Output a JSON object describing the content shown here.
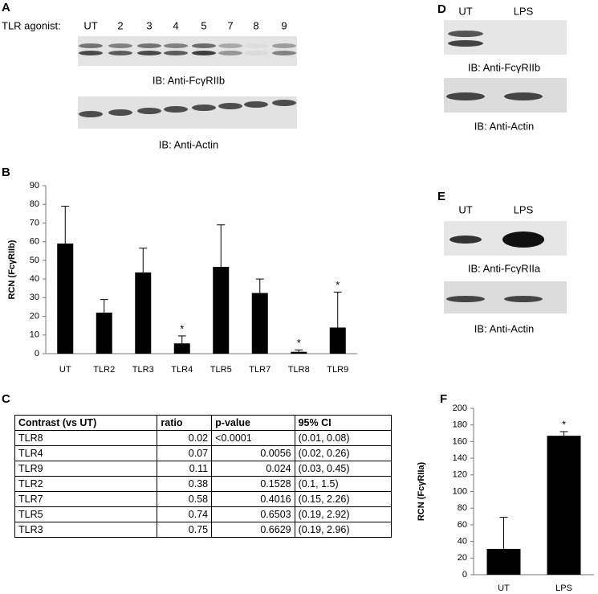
{
  "panels": {
    "a": "A",
    "b": "B",
    "c": "C",
    "d": "D",
    "e": "E",
    "f": "F"
  },
  "blot_a": {
    "row_label": "TLR agonist:",
    "lanes": [
      "UT",
      "2",
      "3",
      "4",
      "5",
      "7",
      "8",
      "9"
    ],
    "label_top": "IB: Anti-FcγRIIb",
    "label_bottom": "IB: Anti-Actin"
  },
  "blot_d": {
    "lanes": [
      "UT",
      "LPS"
    ],
    "label_top": "IB: Anti-FcγRIIb",
    "label_bottom": "IB: Anti-Actin"
  },
  "blot_e": {
    "lanes": [
      "UT",
      "LPS"
    ],
    "label_top": "IB: Anti-FcγRIIa",
    "label_bottom": "IB: Anti-Actin"
  },
  "chart_data": [
    {
      "type": "bar",
      "ylabel": "RCN (FcγRIIb)",
      "categories": [
        "UT",
        "TLR2",
        "TLR3",
        "TLR4",
        "TLR5",
        "TLR7",
        "TLR8",
        "TLR9"
      ],
      "values": [
        59,
        22,
        43.5,
        5.5,
        46.5,
        32.5,
        1,
        14
      ],
      "errors": [
        20,
        7,
        13,
        4,
        22.5,
        7.5,
        1,
        19
      ],
      "markers": [
        null,
        null,
        null,
        "*",
        null,
        null,
        "*",
        "*"
      ],
      "color": "#000000",
      "ylim": [
        0,
        90
      ],
      "yticks": [
        0,
        10,
        20,
        30,
        40,
        50,
        60,
        70,
        80,
        90
      ]
    },
    {
      "type": "bar",
      "ylabel": "RCN (FcγRIIa)",
      "categories": [
        "UT",
        "LPS"
      ],
      "values": [
        31,
        167
      ],
      "errors": [
        38,
        5
      ],
      "markers": [
        null,
        "*"
      ],
      "color": "#000000",
      "ylim": [
        0,
        200
      ],
      "yticks": [
        0,
        20,
        40,
        60,
        80,
        100,
        120,
        140,
        160,
        180,
        200
      ]
    }
  ],
  "table": {
    "header": [
      "Contrast (vs UT)",
      "ratio",
      "p-value",
      "95% CI"
    ],
    "rows": [
      [
        "TLR8",
        0.02,
        "<0.0001",
        "(0.01, 0.08)"
      ],
      [
        "TLR4",
        0.07,
        0.0056,
        "(0.02, 0.26)"
      ],
      [
        "TLR9",
        0.11,
        0.024,
        "(0.03, 0.45)"
      ],
      [
        "TLR2",
        0.38,
        0.1528,
        "(0.1, 1.5)"
      ],
      [
        "TLR7",
        0.58,
        0.4016,
        "(0.15, 2.26)"
      ],
      [
        "TLR5",
        0.74,
        0.6503,
        "(0.19, 2.92)"
      ],
      [
        "TLR3",
        0.75,
        0.6629,
        "(0.19, 2.96)"
      ]
    ]
  }
}
